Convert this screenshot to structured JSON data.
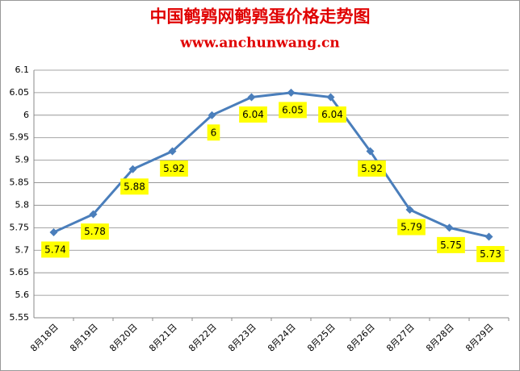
{
  "chart_data": {
    "type": "line",
    "title": "中国鹌鹑网鹌鹑蛋价格走势图",
    "subtitle": "www.anchunwang.cn",
    "categories": [
      "8月18日",
      "8月19日",
      "8月20日",
      "8月21日",
      "8月22日",
      "8月23日",
      "8月24日",
      "8月25日",
      "8月26日",
      "8月27日",
      "8月28日",
      "8月29日"
    ],
    "values": [
      5.74,
      5.78,
      5.88,
      5.92,
      6,
      6.04,
      6.05,
      6.04,
      5.92,
      5.79,
      5.75,
      5.73
    ],
    "color": "#4a7ebb",
    "label_color": "#ffff00",
    "ylim": [
      5.55,
      6.1
    ],
    "yticks": [
      5.55,
      5.6,
      5.65,
      5.7,
      5.75,
      5.8,
      5.85,
      5.9,
      5.95,
      6,
      6.05,
      6.1
    ],
    "grid": true
  }
}
